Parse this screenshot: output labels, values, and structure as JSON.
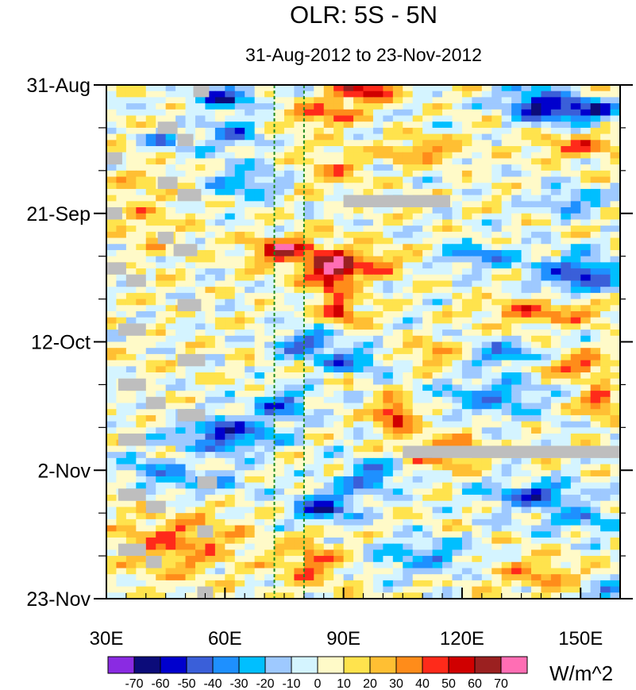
{
  "chart_data": {
    "type": "heatmap",
    "title": "OLR: 5S - 5N",
    "subtitle": "31-Aug-2012 to 23-Nov-2012",
    "units": "W/m^2",
    "x_range": [
      30,
      160
    ],
    "y_range_days": [
      0,
      84
    ],
    "x_ticks": [
      {
        "value": 30,
        "label": "30E"
      },
      {
        "value": 60,
        "label": "60E"
      },
      {
        "value": 90,
        "label": "90E"
      },
      {
        "value": 120,
        "label": "120E"
      },
      {
        "value": 150,
        "label": "150E"
      }
    ],
    "y_ticks": [
      {
        "day": 0,
        "label": "31-Aug"
      },
      {
        "day": 21,
        "label": "21-Sep"
      },
      {
        "day": 42,
        "label": "12-Oct"
      },
      {
        "day": 63,
        "label": "2-Nov"
      },
      {
        "day": 84,
        "label": "23-Nov"
      }
    ],
    "reference_lines_lon": [
      72.5,
      80
    ],
    "colorbar": {
      "labels": [
        "-70",
        "-60",
        "-50",
        "-40",
        "-30",
        "-20",
        "-10",
        "0",
        "10",
        "20",
        "30",
        "40",
        "50",
        "60",
        "70"
      ],
      "colors": [
        "#8a2be2",
        "#0c0c7a",
        "#0000cd",
        "#3a5fd9",
        "#1e90ff",
        "#00bfff",
        "#9ec9ff",
        "#d4f4ff",
        "#fffac8",
        "#ffe34d",
        "#ffbf33",
        "#ff8c1a",
        "#ff2a1a",
        "#d00000",
        "#9b2020",
        "#ff6eb4"
      ]
    },
    "features": [
      {
        "lon": 95,
        "day": 1,
        "value": 55,
        "rlon": 8,
        "rday": 2
      },
      {
        "lon": 85,
        "day": 5,
        "value": 40,
        "rlon": 8,
        "rday": 2
      },
      {
        "lon": 150,
        "day": 4,
        "value": -60,
        "rlon": 10,
        "rday": 2
      },
      {
        "lon": 138,
        "day": 3,
        "value": -45,
        "rlon": 8,
        "rday": 3
      },
      {
        "lon": 60,
        "day": 2,
        "value": -50,
        "rlon": 8,
        "rday": 2
      },
      {
        "lon": 62,
        "day": 8,
        "value": -40,
        "rlon": 6,
        "rday": 2.5
      },
      {
        "lon": 45,
        "day": 9,
        "value": -35,
        "rlon": 6,
        "rday": 2
      },
      {
        "lon": 150,
        "day": 10,
        "value": 30,
        "rlon": 12,
        "rday": 2
      },
      {
        "lon": 110,
        "day": 11,
        "value": 30,
        "rlon": 10,
        "rday": 2
      },
      {
        "lon": 65,
        "day": 16,
        "value": -30,
        "rlon": 10,
        "rday": 3
      },
      {
        "lon": 88,
        "day": 14,
        "value": 25,
        "rlon": 8,
        "rday": 3
      },
      {
        "lon": 148,
        "day": 19,
        "value": -35,
        "rlon": 8,
        "rday": 2
      },
      {
        "lon": 75,
        "day": 27,
        "value": 55,
        "rlon": 9,
        "rday": 2.5
      },
      {
        "lon": 87,
        "day": 31,
        "value": 65,
        "rlon": 6,
        "rday": 3
      },
      {
        "lon": 89,
        "day": 37,
        "value": 55,
        "rlon": 5,
        "rday": 2
      },
      {
        "lon": 95,
        "day": 29,
        "value": 40,
        "rlon": 10,
        "rday": 2
      },
      {
        "lon": 150,
        "day": 31,
        "value": -55,
        "rlon": 10,
        "rday": 3
      },
      {
        "lon": 125,
        "day": 28,
        "value": -35,
        "rlon": 10,
        "rday": 2
      },
      {
        "lon": 140,
        "day": 37,
        "value": 35,
        "rlon": 15,
        "rday": 2
      },
      {
        "lon": 80,
        "day": 42,
        "value": -45,
        "rlon": 8,
        "rday": 2
      },
      {
        "lon": 93,
        "day": 45,
        "value": -40,
        "rlon": 10,
        "rday": 2
      },
      {
        "lon": 130,
        "day": 44,
        "value": -40,
        "rlon": 10,
        "rday": 2
      },
      {
        "lon": 112,
        "day": 44,
        "value": 30,
        "rlon": 10,
        "rday": 2
      },
      {
        "lon": 150,
        "day": 46,
        "value": 35,
        "rlon": 10,
        "rday": 2
      },
      {
        "lon": 103,
        "day": 54,
        "value": 55,
        "rlon": 5,
        "rday": 2.5
      },
      {
        "lon": 60,
        "day": 57,
        "value": -55,
        "rlon": 12,
        "rday": 3
      },
      {
        "lon": 75,
        "day": 52,
        "value": -40,
        "rlon": 7,
        "rday": 2.5
      },
      {
        "lon": 128,
        "day": 51,
        "value": -35,
        "rlon": 12,
        "rday": 3
      },
      {
        "lon": 155,
        "day": 52,
        "value": 50,
        "rlon": 4,
        "rday": 2
      },
      {
        "lon": 115,
        "day": 60,
        "value": 35,
        "rlon": 10,
        "rday": 3
      },
      {
        "lon": 97,
        "day": 64,
        "value": -40,
        "rlon": 8,
        "rday": 3
      },
      {
        "lon": 55,
        "day": 65,
        "value": -35,
        "rlon": 10,
        "rday": 2
      },
      {
        "lon": 40,
        "day": 63,
        "value": -30,
        "rlon": 8,
        "rday": 2
      },
      {
        "lon": 85,
        "day": 69,
        "value": -55,
        "rlon": 8,
        "rday": 2.5
      },
      {
        "lon": 138,
        "day": 67,
        "value": -50,
        "rlon": 12,
        "rday": 2
      },
      {
        "lon": 150,
        "day": 71,
        "value": -30,
        "rlon": 10,
        "rday": 2
      },
      {
        "lon": 48,
        "day": 75,
        "value": 35,
        "rlon": 15,
        "rday": 5
      },
      {
        "lon": 82,
        "day": 78,
        "value": 35,
        "rlon": 8,
        "rday": 4
      },
      {
        "lon": 110,
        "day": 77,
        "value": -30,
        "rlon": 12,
        "rday": 3
      },
      {
        "lon": 140,
        "day": 80,
        "value": 25,
        "rlon": 12,
        "rday": 3
      },
      {
        "lon": 157,
        "day": 83,
        "value": -55,
        "rlon": 4,
        "rday": 1.5
      },
      {
        "lon": 40,
        "day": 20,
        "value": 15,
        "rlon": 10,
        "rday": 8
      }
    ],
    "missing_data": [
      {
        "lon0": 90,
        "lon1": 117,
        "day0": 18,
        "day1": 20
      },
      {
        "lon0": 105,
        "lon1": 160,
        "day0": 59,
        "day1": 61
      },
      {
        "lon0": 52,
        "lon1": 56,
        "day0": 0,
        "day1": 2
      },
      {
        "lon0": 43,
        "lon1": 48,
        "day0": 6,
        "day1": 8
      },
      {
        "lon0": 48,
        "lon1": 52,
        "day0": 8,
        "day1": 10
      },
      {
        "lon0": 30,
        "lon1": 34,
        "day0": 11,
        "day1": 13
      },
      {
        "lon0": 43,
        "lon1": 48,
        "day0": 15,
        "day1": 17
      },
      {
        "lon0": 48,
        "lon1": 54,
        "day0": 17,
        "day1": 19
      },
      {
        "lon0": 30,
        "lon1": 34,
        "day0": 20,
        "day1": 22
      },
      {
        "lon0": 43,
        "lon1": 47,
        "day0": 24,
        "day1": 26
      },
      {
        "lon0": 47,
        "lon1": 53,
        "day0": 26,
        "day1": 28
      },
      {
        "lon0": 30,
        "lon1": 35,
        "day0": 29,
        "day1": 31
      },
      {
        "lon0": 35,
        "lon1": 40,
        "day0": 31,
        "day1": 33
      },
      {
        "lon0": 48,
        "lon1": 54,
        "day0": 35,
        "day1": 37
      },
      {
        "lon0": 33,
        "lon1": 40,
        "day0": 39,
        "day1": 41
      },
      {
        "lon0": 48,
        "lon1": 55,
        "day0": 44,
        "day1": 46
      },
      {
        "lon0": 33,
        "lon1": 40,
        "day0": 48,
        "day1": 50
      },
      {
        "lon0": 40,
        "lon1": 45,
        "day0": 51,
        "day1": 53
      },
      {
        "lon0": 48,
        "lon1": 55,
        "day0": 53,
        "day1": 55
      },
      {
        "lon0": 33,
        "lon1": 40,
        "day0": 57,
        "day1": 59
      },
      {
        "lon0": 53,
        "lon1": 58,
        "day0": 64,
        "day1": 66
      },
      {
        "lon0": 33,
        "lon1": 40,
        "day0": 66,
        "day1": 68
      },
      {
        "lon0": 40,
        "lon1": 45,
        "day0": 68,
        "day1": 70
      },
      {
        "lon0": 53,
        "lon1": 57,
        "day0": 72,
        "day1": 74
      },
      {
        "lon0": 33,
        "lon1": 40,
        "day0": 75,
        "day1": 77
      },
      {
        "lon0": 40,
        "lon1": 44,
        "day0": 77,
        "day1": 79
      },
      {
        "lon0": 53,
        "lon1": 57,
        "day0": 82,
        "day1": 84
      }
    ]
  }
}
